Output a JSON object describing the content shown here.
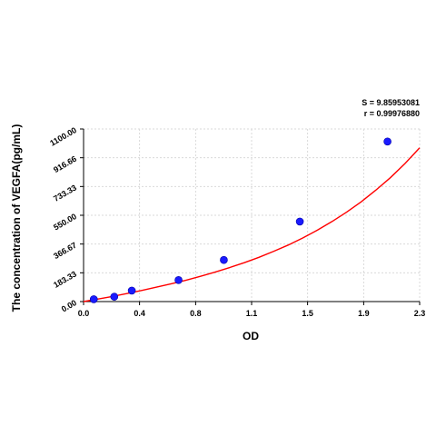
{
  "chart_data": {
    "type": "scatter",
    "title": "",
    "xlabel": "OD",
    "ylabel": "The concentration of VEGFA(pg/mL)",
    "xlim": [
      0,
      2.3
    ],
    "ylim": [
      0,
      1100
    ],
    "x_ticks": [
      "0.0",
      "0.4",
      "0.8",
      "1.1",
      "1.5",
      "1.9",
      "2.3"
    ],
    "x_tick_values": [
      0,
      0.383,
      0.767,
      1.15,
      1.533,
      1.917,
      2.3
    ],
    "y_ticks": [
      "0.00",
      "183.33",
      "366.67",
      "550.00",
      "733.33",
      "916.66",
      "1100.00"
    ],
    "y_tick_values": [
      0,
      183.33,
      366.67,
      550,
      733.33,
      916.66,
      1100
    ],
    "grid": true,
    "stats": {
      "s": "S = 9.85953081",
      "r": "r = 0.99976880"
    },
    "series": [
      {
        "x": [
          0.07,
          0.21,
          0.33,
          0.65,
          0.96,
          1.48,
          2.08
        ],
        "y": [
          15,
          31,
          70,
          137,
          265,
          510,
          1020
        ]
      }
    ],
    "fit_curve": {
      "x": [
        0.0,
        0.1,
        0.2,
        0.3,
        0.4,
        0.5,
        0.6,
        0.7,
        0.8,
        0.9,
        1.0,
        1.1,
        1.2,
        1.3,
        1.4,
        1.5,
        1.6,
        1.7,
        1.8,
        1.9,
        2.0,
        2.1,
        2.2,
        2.3
      ],
      "y": [
        0,
        16,
        33,
        52,
        71,
        92,
        113,
        136,
        161,
        188,
        217,
        248,
        282,
        320,
        360,
        405,
        455,
        510,
        570,
        636,
        710,
        790,
        880,
        980
      ],
      "color": "#ff0000"
    },
    "colors": {
      "points": "#1a1aff",
      "curve": "#ff0000"
    }
  }
}
